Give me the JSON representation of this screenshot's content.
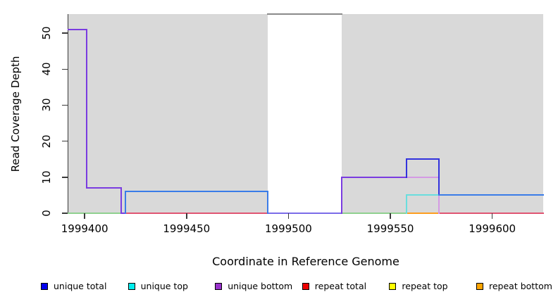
{
  "y_axis": {
    "label": "Read Coverage Depth",
    "ticks": [
      "0",
      "10",
      "20",
      "30",
      "40",
      "50"
    ]
  },
  "x_axis": {
    "label": "Coordinate in Reference Genome",
    "ticks": [
      "1999400",
      "1999450",
      "1999500",
      "1999550",
      "1999600"
    ]
  },
  "legend": [
    {
      "label": "unique total",
      "color": "#0000EE"
    },
    {
      "label": "unique top",
      "color": "#00EEEE"
    },
    {
      "label": "unique bottom",
      "color": "#9932CC"
    },
    {
      "label": "repeat total",
      "color": "#EE0000"
    },
    {
      "label": "repeat top",
      "color": "#FFFF00"
    },
    {
      "label": "repeat bottom",
      "color": "#FFA500"
    }
  ],
  "chart_data": {
    "type": "line",
    "subtype": "step-coverage",
    "title": "",
    "xlabel": "Coordinate in Reference Genome",
    "ylabel": "Read Coverage Depth",
    "xlim": [
      1999392,
      1999625
    ],
    "ylim": [
      0,
      55.3
    ],
    "x_ticks": [
      1999400,
      1999450,
      1999500,
      1999550,
      1999600
    ],
    "y_ticks": [
      0,
      10,
      20,
      30,
      40,
      50
    ],
    "plot_background": "#d9d9d9",
    "masked_region": {
      "x1": 1999490,
      "x2": 1999526,
      "top_border_color": "#8a8a8a"
    },
    "series": [
      {
        "name": "unique total",
        "color": "#0000EE",
        "steps": [
          [
            1999392,
            51
          ],
          [
            1999401,
            7
          ],
          [
            1999418,
            0
          ],
          [
            1999420,
            6
          ],
          [
            1999490,
            0
          ],
          [
            1999526,
            10
          ],
          [
            1999558,
            15
          ],
          [
            1999574,
            5
          ],
          [
            1999625,
            5
          ]
        ]
      },
      {
        "name": "unique top",
        "color": "#00EEEE",
        "steps": [
          [
            1999392,
            0
          ],
          [
            1999420,
            6
          ],
          [
            1999490,
            0
          ],
          [
            1999558,
            5
          ],
          [
            1999625,
            5
          ]
        ]
      },
      {
        "name": "unique bottom",
        "color": "#9932CC",
        "steps": [
          [
            1999392,
            51
          ],
          [
            1999401,
            7
          ],
          [
            1999418,
            0
          ],
          [
            1999526,
            10
          ],
          [
            1999574,
            0
          ],
          [
            1999625,
            0
          ]
        ]
      },
      {
        "name": "repeat total",
        "color": "#EE0000",
        "steps": [
          [
            1999392,
            0
          ],
          [
            1999625,
            0
          ]
        ]
      },
      {
        "name": "repeat top",
        "color": "#FFFF00",
        "steps": [
          [
            1999392,
            0
          ],
          [
            1999625,
            0
          ]
        ]
      },
      {
        "name": "repeat bottom",
        "color": "#FFA500",
        "steps": [
          [
            1999392,
            0
          ],
          [
            1999625,
            0
          ]
        ]
      }
    ],
    "visible_segments": [
      {
        "x1": 1999392,
        "y1": 0,
        "x2": 1999418,
        "y2": 0,
        "c": "#8fd08f"
      },
      {
        "x1": 1999418,
        "y1": 0,
        "x2": 1999420,
        "y2": 0,
        "c": "#7a3ce0"
      },
      {
        "x1": 1999420,
        "y1": 0,
        "x2": 1999490,
        "y2": 0,
        "c": "#e05572"
      },
      {
        "x1": 1999490,
        "y1": 0,
        "x2": 1999526,
        "y2": 0,
        "c": "#7b6ce8"
      },
      {
        "x1": 1999526,
        "y1": 0,
        "x2": 1999558,
        "y2": 0,
        "c": "#8fd08f"
      },
      {
        "x1": 1999558,
        "y1": 0,
        "x2": 1999574,
        "y2": 0,
        "c": "#ff9d1e"
      },
      {
        "x1": 1999574,
        "y1": 0,
        "x2": 1999625,
        "y2": 0,
        "c": "#e05572"
      },
      {
        "x1": 1999392,
        "y1": 51,
        "x2": 1999401,
        "y2": 51,
        "c": "#7a3ce0"
      },
      {
        "x1": 1999401,
        "y1": 7,
        "x2": 1999401,
        "y2": 51,
        "c": "#7a3ce0"
      },
      {
        "x1": 1999401,
        "y1": 7,
        "x2": 1999418,
        "y2": 7,
        "c": "#7a3ce0"
      },
      {
        "x1": 1999418,
        "y1": 0,
        "x2": 1999418,
        "y2": 7,
        "c": "#7a3ce0"
      },
      {
        "x1": 1999420,
        "y1": 0,
        "x2": 1999420,
        "y2": 6,
        "c": "#3a7ce8"
      },
      {
        "x1": 1999420,
        "y1": 6,
        "x2": 1999490,
        "y2": 6,
        "c": "#3a7ce8"
      },
      {
        "x1": 1999490,
        "y1": 0,
        "x2": 1999490,
        "y2": 6,
        "c": "#3a7ce8"
      },
      {
        "x1": 1999526,
        "y1": 0,
        "x2": 1999526,
        "y2": 10,
        "c": "#7a3ce0"
      },
      {
        "x1": 1999526,
        "y1": 10,
        "x2": 1999558,
        "y2": 10,
        "c": "#7a3ce0"
      },
      {
        "x1": 1999558,
        "y1": 10,
        "x2": 1999574,
        "y2": 10,
        "c": "#d49ae4"
      },
      {
        "x1": 1999574,
        "y1": 0,
        "x2": 1999574,
        "y2": 10,
        "c": "#d49ae4"
      },
      {
        "x1": 1999558,
        "y1": 0,
        "x2": 1999558,
        "y2": 5,
        "c": "#6adede"
      },
      {
        "x1": 1999558,
        "y1": 5,
        "x2": 1999574,
        "y2": 5,
        "c": "#6adede"
      },
      {
        "x1": 1999558,
        "y1": 10,
        "x2": 1999558,
        "y2": 15,
        "c": "#3232dd"
      },
      {
        "x1": 1999558,
        "y1": 15,
        "x2": 1999574,
        "y2": 15,
        "c": "#3232dd"
      },
      {
        "x1": 1999574,
        "y1": 5,
        "x2": 1999574,
        "y2": 15,
        "c": "#3232dd"
      },
      {
        "x1": 1999574,
        "y1": 5,
        "x2": 1999625,
        "y2": 5,
        "c": "#3a7ce8"
      },
      {
        "x1": 1999490,
        "y1": 55.3,
        "x2": 1999526,
        "y2": 55.3,
        "c": "#8a8a8a"
      }
    ]
  }
}
